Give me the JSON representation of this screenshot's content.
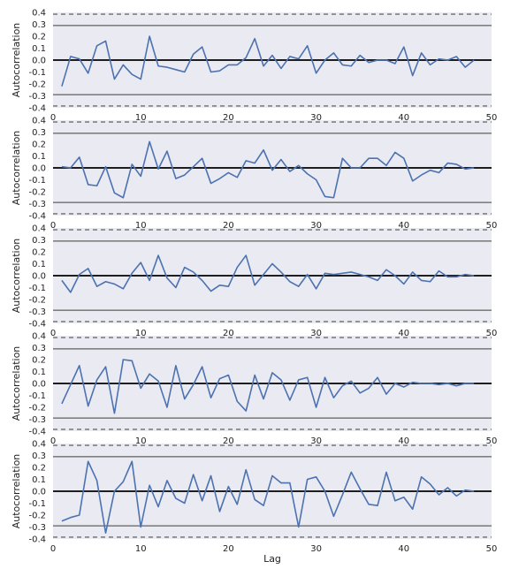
{
  "chart_data": {
    "type": "line",
    "xlabel": "Lag",
    "ylabel": "Autocorrelation",
    "xlim": [
      0,
      50
    ],
    "ylim": [
      -0.4,
      0.4
    ],
    "xticks": [
      0,
      10,
      20,
      30,
      40,
      50
    ],
    "yticks": [
      -0.4,
      -0.3,
      -0.2,
      -0.1,
      0.0,
      0.1,
      0.2,
      0.3,
      0.4
    ],
    "ytick_labels": [
      "-0.4",
      "-0.3",
      "-0.2",
      "-0.1",
      "0.0",
      "0.1",
      "0.2",
      "0.3",
      "0.4"
    ],
    "confidence_lines": {
      "solid": [
        0.29,
        -0.29
      ],
      "dashed": [
        0.385,
        -0.385
      ]
    },
    "colors": {
      "line": "#4c72b0",
      "plot_bg": "#eaeaf2",
      "band_line": "#808080",
      "zero_line": "#000000"
    },
    "x": [
      1,
      2,
      3,
      4,
      5,
      6,
      7,
      8,
      9,
      10,
      11,
      12,
      13,
      14,
      15,
      16,
      17,
      18,
      19,
      20,
      21,
      22,
      23,
      24,
      25,
      26,
      27,
      28,
      29,
      30,
      31,
      32,
      33,
      34,
      35,
      36,
      37,
      38,
      39,
      40,
      41,
      42,
      43,
      44,
      45,
      46,
      47,
      48
    ],
    "panels": [
      {
        "values": [
          -0.22,
          0.03,
          0.01,
          -0.11,
          0.12,
          0.16,
          -0.16,
          -0.04,
          -0.12,
          -0.16,
          0.2,
          -0.05,
          -0.06,
          -0.08,
          -0.1,
          0.05,
          0.11,
          -0.1,
          -0.09,
          -0.04,
          -0.04,
          0.02,
          0.18,
          -0.05,
          0.04,
          -0.07,
          0.03,
          0.01,
          0.12,
          -0.11,
          0.0,
          0.06,
          -0.04,
          -0.05,
          0.04,
          -0.02,
          0.0,
          0.0,
          -0.03,
          0.11,
          -0.13,
          0.06,
          -0.04,
          0.01,
          0.0,
          0.03,
          -0.06,
          0.0
        ]
      },
      {
        "values": [
          0.01,
          0.0,
          0.09,
          -0.14,
          -0.15,
          0.01,
          -0.21,
          -0.25,
          0.03,
          -0.07,
          0.22,
          -0.01,
          0.14,
          -0.09,
          -0.06,
          0.01,
          0.08,
          -0.13,
          -0.09,
          -0.04,
          -0.08,
          0.06,
          0.04,
          0.15,
          -0.02,
          0.07,
          -0.03,
          0.02,
          -0.05,
          -0.1,
          -0.24,
          -0.25,
          0.08,
          0.0,
          0.0,
          0.08,
          0.08,
          0.02,
          0.13,
          0.08,
          -0.11,
          -0.06,
          -0.02,
          -0.04,
          0.04,
          0.03,
          -0.01,
          0.0
        ]
      },
      {
        "values": [
          -0.04,
          -0.14,
          0.01,
          0.06,
          -0.09,
          -0.05,
          -0.07,
          -0.11,
          0.02,
          0.11,
          -0.04,
          0.17,
          -0.02,
          -0.1,
          0.07,
          0.03,
          -0.04,
          -0.13,
          -0.08,
          -0.09,
          0.07,
          0.17,
          -0.08,
          0.01,
          0.1,
          0.03,
          -0.05,
          -0.09,
          0.01,
          -0.11,
          0.02,
          0.01,
          0.02,
          0.03,
          0.01,
          -0.01,
          -0.04,
          0.05,
          0.0,
          -0.07,
          0.03,
          -0.04,
          -0.05,
          0.04,
          -0.01,
          -0.01,
          0.01,
          0.0
        ]
      },
      {
        "values": [
          -0.17,
          -0.01,
          0.15,
          -0.19,
          0.03,
          0.14,
          -0.25,
          0.2,
          0.19,
          -0.04,
          0.08,
          0.02,
          -0.2,
          0.15,
          -0.13,
          -0.01,
          0.14,
          -0.12,
          0.04,
          0.07,
          -0.15,
          -0.23,
          0.07,
          -0.13,
          0.09,
          0.03,
          -0.14,
          0.03,
          0.05,
          -0.2,
          0.05,
          -0.12,
          -0.02,
          0.02,
          -0.08,
          -0.04,
          0.05,
          -0.09,
          0.0,
          -0.03,
          0.01,
          0.0,
          0.0,
          -0.01,
          0.0,
          -0.02,
          0.0,
          0.0
        ]
      },
      {
        "values": [
          -0.25,
          -0.22,
          -0.2,
          0.25,
          0.09,
          -0.35,
          0.0,
          0.08,
          0.25,
          -0.3,
          0.05,
          -0.13,
          0.09,
          -0.06,
          -0.1,
          0.14,
          -0.08,
          0.13,
          -0.17,
          0.04,
          -0.11,
          0.18,
          -0.07,
          -0.12,
          0.13,
          0.07,
          0.07,
          -0.3,
          0.1,
          0.12,
          0.0,
          -0.21,
          -0.03,
          0.16,
          0.02,
          -0.11,
          -0.12,
          0.16,
          -0.08,
          -0.05,
          -0.15,
          0.12,
          0.06,
          -0.03,
          0.03,
          -0.04,
          0.01,
          0.0
        ]
      }
    ]
  }
}
